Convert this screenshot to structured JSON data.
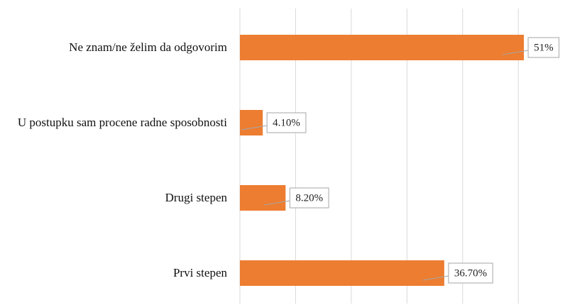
{
  "chart_data": {
    "type": "bar",
    "orientation": "horizontal",
    "categories": [
      "Ne znam/ne želim da odgovorim",
      "U postupku sam procene radne sposobnosti",
      "Drugi stepen",
      "Prvi stepen"
    ],
    "values": [
      51,
      4.1,
      8.2,
      36.7
    ],
    "value_labels": [
      "51%",
      "4.10%",
      "8.20%",
      "36.70%"
    ],
    "color": "#ED7D31",
    "xlim": [
      0,
      58
    ],
    "xticks": [
      0,
      10,
      20,
      30,
      40,
      50
    ],
    "grid": true
  }
}
